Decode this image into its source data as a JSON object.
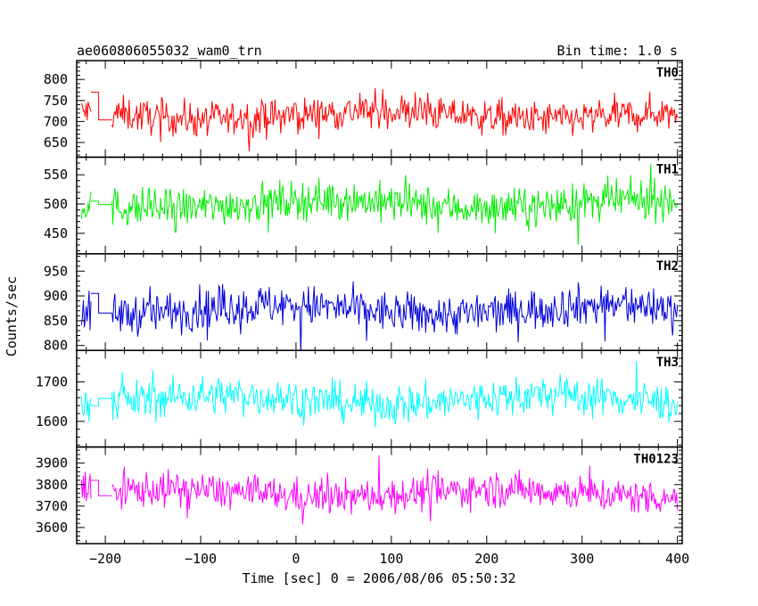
{
  "chart_data": {
    "type": "line",
    "title": "ae060806055032_wam0_trn",
    "subtitle": "Bin time: 1.0 s",
    "xlabel": "Time [sec] 0 = 2006/08/06 05:50:32",
    "ylabel": "Counts/sec",
    "xlim": [
      -230,
      405
    ],
    "x_ticks": [
      -200,
      -100,
      0,
      100,
      200,
      300,
      400
    ],
    "x_tick_labels": [
      "−200",
      "−100",
      "0",
      "100",
      "200",
      "300",
      "400"
    ],
    "grid": false,
    "panels": [
      {
        "name": "TH0",
        "color": "#ff0000",
        "ylim": [
          615,
          845
        ],
        "y_ticks": [
          650,
          700,
          750,
          800
        ],
        "mean": 715,
        "spread": 38,
        "gap_level": 770
      },
      {
        "name": "TH1",
        "color": "#00ee00",
        "ylim": [
          415,
          580
        ],
        "y_ticks": [
          450,
          500,
          550
        ],
        "mean": 500,
        "spread": 30,
        "gap_level": 505
      },
      {
        "name": "TH2",
        "color": "#0000dd",
        "ylim": [
          790,
          985
        ],
        "y_ticks": [
          800,
          850,
          900,
          950
        ],
        "mean": 872,
        "spread": 38,
        "gap_level": 905
      },
      {
        "name": "TH3",
        "color": "#00ffff",
        "ylim": [
          1535,
          1780
        ],
        "y_ticks": [
          1600,
          1700
        ],
        "mean": 1655,
        "spread": 45,
        "gap_level": 1640
      },
      {
        "name": "TH0123",
        "color": "#ff00ff",
        "ylim": [
          3525,
          3975
        ],
        "y_ticks": [
          3600,
          3700,
          3800,
          3900
        ],
        "mean": 3760,
        "spread": 75,
        "gap_level": 3820
      }
    ],
    "segments": [
      {
        "x_start": -225,
        "x_end": -215,
        "type": "noise"
      },
      {
        "x_start": -215,
        "x_end": -193,
        "type": "step"
      },
      {
        "x_start": -193,
        "x_end": 400,
        "type": "noise"
      }
    ]
  }
}
